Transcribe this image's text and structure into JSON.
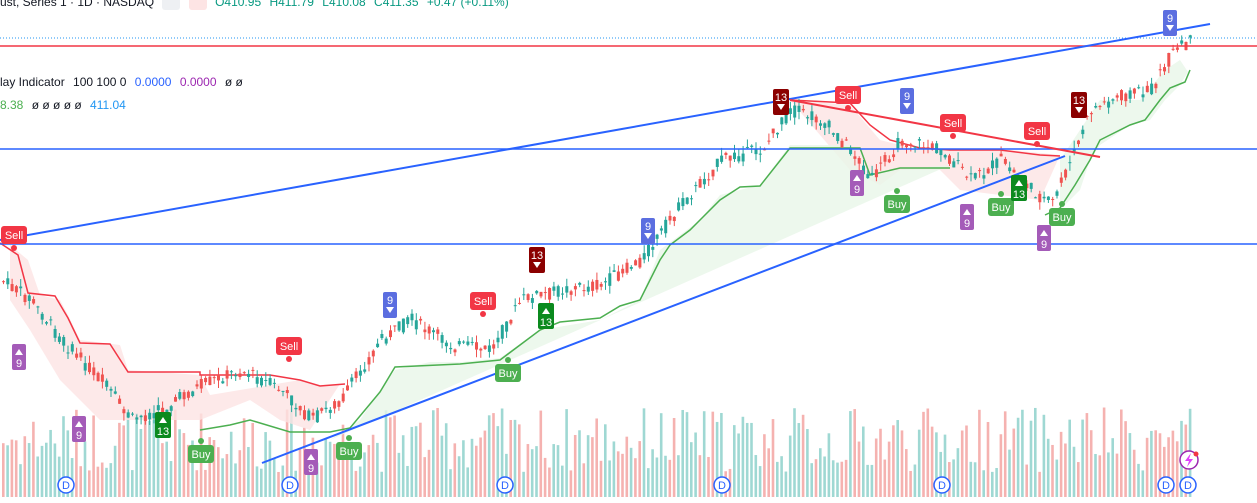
{
  "header": {
    "symbol_text": "ust, Series 1 · 1D · NASDAQ",
    "ohlc": {
      "open": "O410.95",
      "high": "H411.79",
      "low": "L410.08",
      "close": "C411.35",
      "change": "+0.47 (+0.11%)"
    },
    "ohlc_color": "#089981"
  },
  "indicators": [
    {
      "name": "lay Indicator",
      "params": "100 100 0",
      "v1": "0.0000",
      "v2": "0.0000",
      "rest": "ø ø",
      "v1_color": "#2962ff",
      "v2_color": "#9c27b0"
    },
    {
      "value": "8.38",
      "rest": "ø ø ø ø ø",
      "last": "411.04",
      "value_color": "#4caf50",
      "last_color": "#2196f3"
    }
  ],
  "signals": {
    "buy_label": "Buy",
    "sell_label": "Sell",
    "nine_label": "9",
    "thirteen_label": "13",
    "event_label": "D"
  },
  "colors": {
    "up": "#26a69a",
    "down": "#ef5350",
    "buy": "#4caf50",
    "sell": "#f23645",
    "trendline": "#2962ff",
    "resistance": "#f23645",
    "nine_up": "#5b6ee0",
    "nine_down": "#a45bb8",
    "thirteen_down": "#8b0000",
    "thirteen_up": "#0b8a1e"
  }
}
